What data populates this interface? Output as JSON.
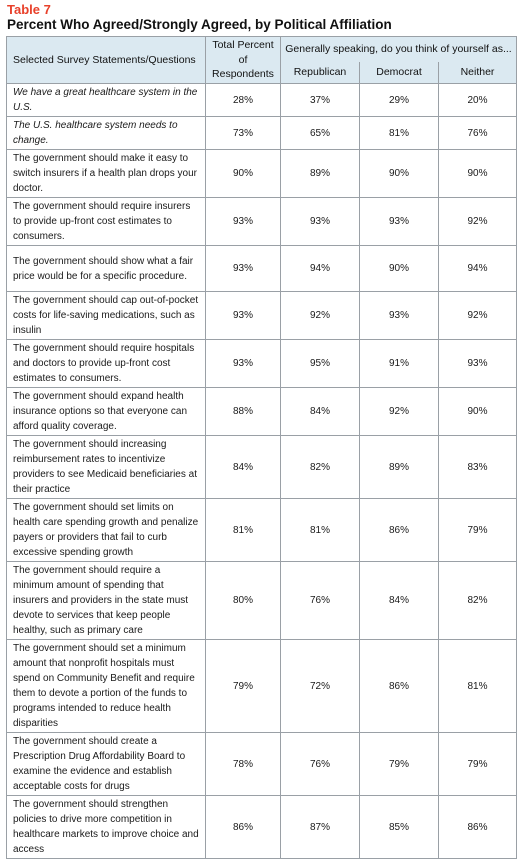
{
  "table_label": "Table 7",
  "title": "Percent Who Agreed/Strongly Agreed, by Political Affiliation",
  "header": {
    "statement_col": "Selected Survey Statements/Questions",
    "total_col": "Total Percent of Respondents",
    "group_col": "Generally speaking, do you think of yourself as...",
    "sub_cols": [
      "Republican",
      "Democrat",
      "Neither"
    ]
  },
  "rows": [
    {
      "statement": "We have a great healthcare system in the U.S.",
      "italic": true,
      "total": "28%",
      "republican": "37%",
      "democrat": "29%",
      "neither": "20%"
    },
    {
      "statement": "The U.S. healthcare system needs to change.",
      "italic": true,
      "total": "73%",
      "republican": "65%",
      "democrat": "81%",
      "neither": "76%"
    },
    {
      "statement": "The government should make it easy to switch insurers if a health plan drops your doctor.",
      "italic": false,
      "total": "90%",
      "republican": "89%",
      "democrat": "90%",
      "neither": "90%"
    },
    {
      "statement": "The government should require insurers to provide up-front cost estimates to consumers.",
      "italic": false,
      "total": "93%",
      "republican": "93%",
      "democrat": "93%",
      "neither": "92%"
    },
    {
      "statement": "The government should show what a fair price would be for a specific procedure.",
      "italic": false,
      "total": "93%",
      "republican": "94%",
      "democrat": "90%",
      "neither": "94%"
    },
    {
      "statement": "The government should cap out-of-pocket costs for life-saving medications, such as insulin",
      "italic": false,
      "total": "93%",
      "republican": "92%",
      "democrat": "93%",
      "neither": "92%"
    },
    {
      "statement": "The government should require hospitals and doctors to provide up-front cost estimates to consumers.",
      "italic": false,
      "total": "93%",
      "republican": "95%",
      "democrat": "91%",
      "neither": "93%"
    },
    {
      "statement": "The government should expand health insurance options so that everyone can afford quality coverage.",
      "italic": false,
      "total": "88%",
      "republican": "84%",
      "democrat": "92%",
      "neither": "90%"
    },
    {
      "statement": "The government should increasing reimbursement rates to incentivize providers to see Medicaid beneficiaries at their practice",
      "italic": false,
      "total": "84%",
      "republican": "82%",
      "democrat": "89%",
      "neither": "83%"
    },
    {
      "statement": "The government should set limits on health care spending growth and penalize payers or providers that fail to curb excessive spending growth",
      "italic": false,
      "total": "81%",
      "republican": "81%",
      "democrat": "86%",
      "neither": "79%"
    },
    {
      "statement": "The government should require a minimum amount of spending that insurers and providers in the state must devote to services that keep people healthy, such as primary care",
      "italic": false,
      "total": "80%",
      "republican": "76%",
      "democrat": "84%",
      "neither": "82%"
    },
    {
      "statement": "The government should set a minimum amount that nonprofit hospitals must spend on Community Benefit and require them to devote a portion of the funds to programs intended to reduce health disparities",
      "italic": false,
      "total": "79%",
      "republican": "72%",
      "democrat": "86%",
      "neither": "81%"
    },
    {
      "statement": "The government should create a Prescription Drug Affordability Board to examine the evidence and establish acceptable costs for drugs",
      "italic": false,
      "total": "78%",
      "republican": "76%",
      "democrat": "79%",
      "neither": "79%"
    },
    {
      "statement": "The government should strengthen policies to drive more competition in healthcare markets to improve choice and access",
      "italic": false,
      "total": "86%",
      "republican": "87%",
      "democrat": "85%",
      "neither": "86%"
    }
  ]
}
